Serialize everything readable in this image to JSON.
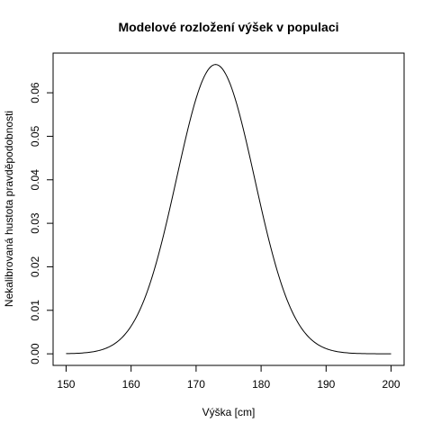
{
  "chart_data": {
    "type": "line",
    "title": "Modelové rozložení výšek v populaci",
    "xlabel": "Výška [cm]",
    "ylabel": "Nekalibrovaná hustota pravděpodobnosti",
    "x_range": [
      150,
      200
    ],
    "xlim": [
      148,
      202
    ],
    "ylim": [
      -0.00266,
      0.06912
    ],
    "x_ticks": [
      150,
      160,
      170,
      180,
      190,
      200
    ],
    "x_tick_labels": [
      "150",
      "160",
      "170",
      "180",
      "190",
      "200"
    ],
    "y_ticks": [
      0.0,
      0.01,
      0.02,
      0.03,
      0.04,
      0.05,
      0.06
    ],
    "y_tick_labels": [
      "0.00",
      "0.01",
      "0.02",
      "0.03",
      "0.04",
      "0.05",
      "0.06"
    ],
    "grid": false,
    "curve": {
      "distribution": "normal",
      "mean": 173,
      "sd": 6,
      "peak_density": 0.0665
    },
    "series": [
      {
        "x": [
          150,
          152,
          154,
          156,
          158,
          160,
          162,
          164,
          166,
          168,
          170,
          172,
          173,
          174,
          176,
          178,
          180,
          182,
          184,
          186,
          188,
          190,
          192,
          194,
          196,
          198,
          200
        ],
        "values": [
          0.0,
          0.0001,
          0.0004,
          0.0012,
          0.0029,
          0.0063,
          0.0124,
          0.0216,
          0.0336,
          0.0469,
          0.0586,
          0.0656,
          0.0665,
          0.0656,
          0.0586,
          0.0469,
          0.0336,
          0.0216,
          0.0124,
          0.0063,
          0.0029,
          0.0012,
          0.0004,
          0.0001,
          0.0,
          0.0,
          0.0
        ]
      }
    ]
  }
}
